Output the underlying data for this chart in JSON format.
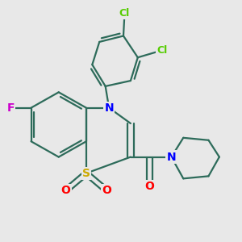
{
  "bg_color": "#e8e8e8",
  "bond_color": "#2d6b5a",
  "bond_width": 1.6,
  "fig_size": [
    3.0,
    3.0
  ],
  "dpi": 100,
  "atoms": {
    "S": {
      "label": "S",
      "color": "#ccaa00",
      "fontsize": 10
    },
    "N1": {
      "label": "N",
      "color": "#0000ff",
      "fontsize": 10
    },
    "N2": {
      "label": "N",
      "color": "#0000ff",
      "fontsize": 10
    },
    "F": {
      "label": "F",
      "color": "#cc00cc",
      "fontsize": 10
    },
    "O1": {
      "label": "O",
      "color": "#ff0000",
      "fontsize": 10
    },
    "O2": {
      "label": "O",
      "color": "#ff0000",
      "fontsize": 10
    },
    "O3": {
      "label": "O",
      "color": "#ff0000",
      "fontsize": 10
    },
    "Cl1": {
      "label": "Cl",
      "color": "#55cc00",
      "fontsize": 9
    },
    "Cl2": {
      "label": "Cl",
      "color": "#55cc00",
      "fontsize": 9
    }
  }
}
